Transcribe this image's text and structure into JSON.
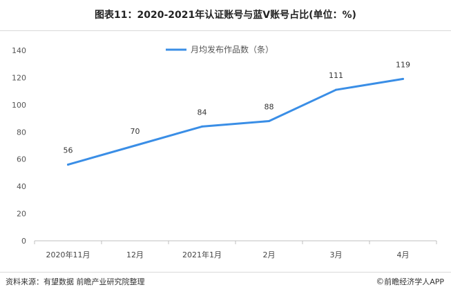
{
  "title": "图表11：2020-2021年认证账号与蓝V账号占比(单位：%)",
  "footer": {
    "source": "资料来源：有望数据 前瞻产业研究院整理",
    "brand_icon": "copyright-icon",
    "brand": "前瞻经济学人APP"
  },
  "colors": {
    "line": "#3a8ee6",
    "axis": "#bfbfbf",
    "text": "#333333"
  },
  "chart_data": {
    "type": "line",
    "categories": [
      "2020年11月",
      "12月",
      "2021年1月",
      "2月",
      "3月",
      "4月"
    ],
    "series": [
      {
        "name": "月均发布作品数（条）",
        "values": [
          56,
          70,
          84,
          88,
          111,
          119
        ]
      }
    ],
    "y_ticks": [
      "0",
      "20",
      "40",
      "60",
      "80",
      "100",
      "120",
      "140"
    ],
    "ylim": [
      0,
      140
    ],
    "grid": false,
    "legend_position": "top-center",
    "data_labels": true
  }
}
